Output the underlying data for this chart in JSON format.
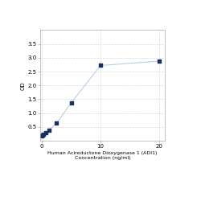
{
  "x": [
    0,
    0.156,
    0.312,
    0.625,
    1.25,
    2.5,
    5,
    10,
    20
  ],
  "y": [
    0.172,
    0.201,
    0.235,
    0.291,
    0.384,
    0.637,
    1.37,
    2.72,
    2.88
  ],
  "line_color": "#b8d0e0",
  "marker_color": "#1a3060",
  "marker_size": 3.5,
  "xlabel_line1": "Human Acireductone Dioxygenase 1 (ADI1)",
  "xlabel_line2": "Concentration (ng/ml)",
  "ylabel": "OD",
  "xlim": [
    -0.3,
    21
  ],
  "ylim": [
    0,
    4.0
  ],
  "xticks": [
    0,
    10,
    20
  ],
  "yticks": [
    0.5,
    1.0,
    1.5,
    2.0,
    2.5,
    3.0,
    3.5
  ],
  "grid_color": "#d8d8d8",
  "background_color": "#ffffff",
  "xlabel_fontsize": 4.5,
  "ylabel_fontsize": 5,
  "tick_fontsize": 5
}
